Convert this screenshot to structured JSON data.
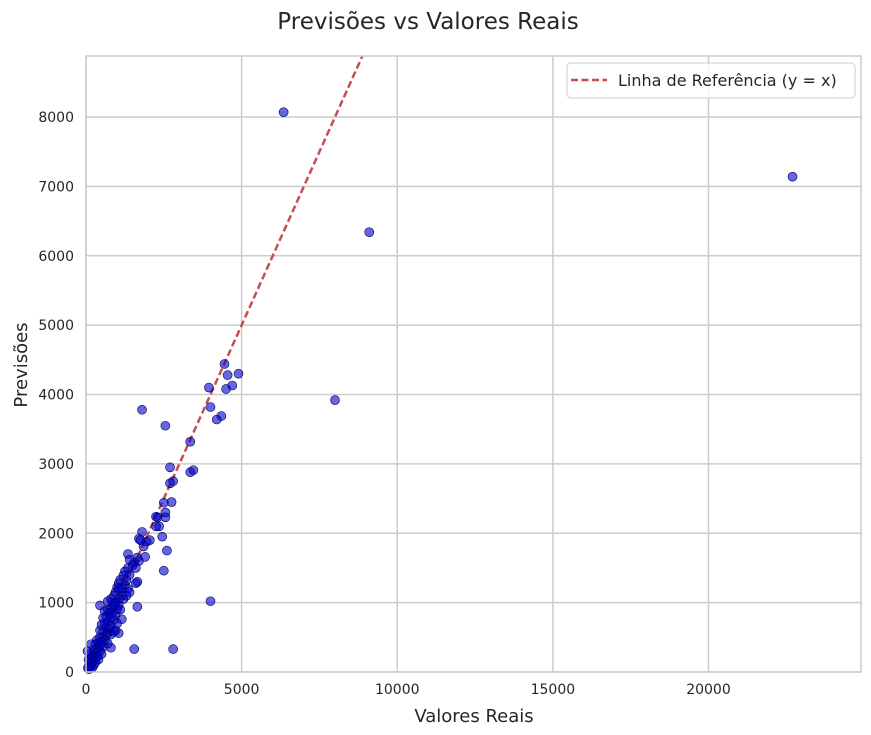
{
  "chart_data": {
    "type": "scatter",
    "title": "Previsões vs Valores Reais",
    "xlabel": "Valores Reais",
    "ylabel": "Previsões",
    "xlim": [
      0,
      24900
    ],
    "ylim": [
      0,
      8880
    ],
    "xticks": [
      0,
      5000,
      10000,
      15000,
      20000
    ],
    "yticks": [
      0,
      1000,
      2000,
      3000,
      4000,
      5000,
      6000,
      7000,
      8000
    ],
    "grid": true,
    "legend_position": "top-right",
    "colors": {
      "points": "#0000cc",
      "point_edge": "#000066",
      "reference_line": "#c44e52",
      "grid": "#cccccc",
      "spine": "#cccccc",
      "text": "#262626"
    },
    "reference_line": {
      "name": "Linha de Referência (y = x)",
      "style": "dashed",
      "from": [
        0,
        0
      ],
      "to": [
        8880,
        8880
      ]
    },
    "series": [
      {
        "points": [
          [
            6350,
            8070
          ],
          [
            22700,
            7140
          ],
          [
            9100,
            6340
          ],
          [
            8000,
            3920
          ],
          [
            4450,
            4440
          ],
          [
            4900,
            4300
          ],
          [
            4550,
            4280
          ],
          [
            4700,
            4130
          ],
          [
            3950,
            4100
          ],
          [
            4500,
            4080
          ],
          [
            4000,
            3820
          ],
          [
            1800,
            3780
          ],
          [
            4350,
            3690
          ],
          [
            4200,
            3640
          ],
          [
            2550,
            3550
          ],
          [
            3350,
            3320
          ],
          [
            3450,
            2910
          ],
          [
            3350,
            2880
          ],
          [
            2700,
            2950
          ],
          [
            2800,
            2750
          ],
          [
            2750,
            2450
          ],
          [
            2500,
            2440
          ],
          [
            2550,
            2300
          ],
          [
            2550,
            2230
          ],
          [
            2300,
            2230
          ],
          [
            2250,
            2240
          ],
          [
            2250,
            2100
          ],
          [
            2350,
            2100
          ],
          [
            1800,
            2020
          ],
          [
            1700,
            1920
          ],
          [
            1950,
            1880
          ],
          [
            1850,
            1810
          ],
          [
            2450,
            1950
          ],
          [
            2600,
            1750
          ],
          [
            1650,
            1650
          ],
          [
            1900,
            1660
          ],
          [
            1700,
            1600
          ],
          [
            1550,
            1580
          ],
          [
            1350,
            1700
          ],
          [
            1400,
            1620
          ],
          [
            1350,
            1500
          ],
          [
            1500,
            1540
          ],
          [
            1600,
            1500
          ],
          [
            1250,
            1450
          ],
          [
            1200,
            1390
          ],
          [
            1300,
            1320
          ],
          [
            1100,
            1330
          ],
          [
            1050,
            1280
          ],
          [
            1250,
            1250
          ],
          [
            1350,
            1200
          ],
          [
            1150,
            1200
          ],
          [
            1000,
            1220
          ],
          [
            1400,
            1150
          ],
          [
            1300,
            1100
          ],
          [
            1150,
            1100
          ],
          [
            1600,
            1280
          ],
          [
            2500,
            1460
          ],
          [
            950,
            1150
          ],
          [
            900,
            1100
          ],
          [
            1050,
            1050
          ],
          [
            800,
            1050
          ],
          [
            850,
            1000
          ],
          [
            1050,
            960
          ],
          [
            700,
            1020
          ],
          [
            900,
            950
          ],
          [
            1000,
            900
          ],
          [
            800,
            920
          ],
          [
            700,
            900
          ],
          [
            1100,
            900
          ],
          [
            600,
            880
          ],
          [
            850,
            850
          ],
          [
            750,
            850
          ],
          [
            950,
            820
          ],
          [
            650,
            800
          ],
          [
            1150,
            760
          ],
          [
            800,
            780
          ],
          [
            550,
            780
          ],
          [
            900,
            750
          ],
          [
            700,
            720
          ],
          [
            600,
            700
          ],
          [
            1000,
            700
          ],
          [
            500,
            680
          ],
          [
            800,
            660
          ],
          [
            650,
            640
          ],
          [
            750,
            620
          ],
          [
            950,
            600
          ],
          [
            450,
            600
          ],
          [
            550,
            580
          ],
          [
            1050,
            560
          ],
          [
            700,
            560
          ],
          [
            900,
            580
          ],
          [
            800,
            540
          ],
          [
            650,
            540
          ],
          [
            450,
            500
          ],
          [
            550,
            480
          ],
          [
            350,
            460
          ],
          [
            600,
            450
          ],
          [
            500,
            430
          ],
          [
            400,
            420
          ],
          [
            700,
            410
          ],
          [
            300,
            400
          ],
          [
            450,
            380
          ],
          [
            550,
            360
          ],
          [
            800,
            350
          ],
          [
            380,
            340
          ],
          [
            250,
            320
          ],
          [
            450,
            300
          ],
          [
            320,
            280
          ],
          [
            500,
            260
          ],
          [
            250,
            250
          ],
          [
            380,
            230
          ],
          [
            200,
            220
          ],
          [
            300,
            200
          ],
          [
            150,
            190
          ],
          [
            400,
            180
          ],
          [
            230,
            160
          ],
          [
            120,
            150
          ],
          [
            300,
            140
          ],
          [
            180,
            120
          ],
          [
            250,
            100
          ],
          [
            100,
            100
          ],
          [
            150,
            80
          ],
          [
            60,
            60
          ],
          [
            200,
            60
          ],
          [
            100,
            40
          ],
          [
            80,
            180
          ],
          [
            120,
            260
          ],
          [
            50,
            300
          ],
          [
            160,
            400
          ],
          [
            450,
            960
          ],
          [
            1650,
            940
          ],
          [
            1650,
            1300
          ],
          [
            4000,
            1020
          ],
          [
            1550,
            330
          ],
          [
            2800,
            330
          ],
          [
            1750,
            1900
          ],
          [
            2050,
            1900
          ],
          [
            2700,
            2720
          ],
          [
            1400,
            1400
          ],
          [
            1050,
            1200
          ],
          [
            950,
            1000
          ],
          [
            1200,
            1050
          ]
        ]
      }
    ]
  }
}
